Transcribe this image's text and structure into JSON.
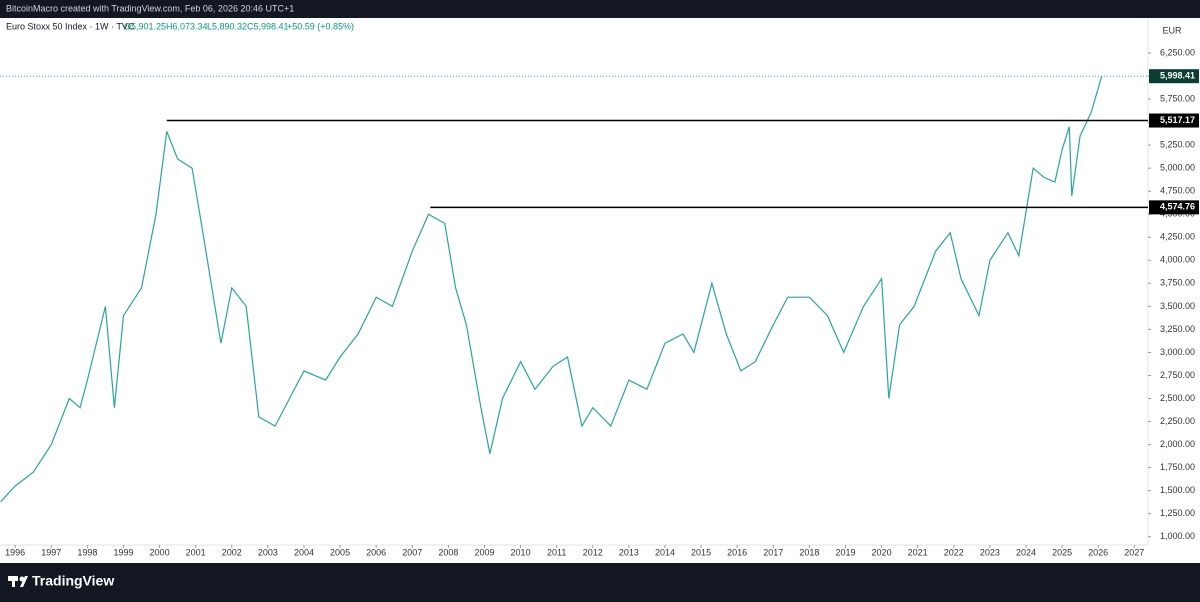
{
  "header": {
    "title": "BitcoinMacro created with TradingView.com, Feb 06, 2026 20:46 UTC+1"
  },
  "legend": {
    "symbol": "Euro Stoxx 50 Index · 1W · TVC",
    "open": "O5,901.25",
    "high": "H6,073.34",
    "low": "L5,890.32",
    "close": "C5,998.41",
    "change": "+50.59 (+0.85%)"
  },
  "footer": {
    "brand": "TradingView"
  },
  "chart_data": {
    "type": "line",
    "currency": "EUR",
    "color": "#26a69a",
    "x": [
      1995.6,
      1996.0,
      1996.5,
      1997.0,
      1997.5,
      1997.8,
      1998.0,
      1998.5,
      1998.75,
      1999.0,
      1999.5,
      1999.9,
      2000.2,
      2000.5,
      2000.9,
      2001.2,
      2001.7,
      2002.0,
      2002.4,
      2002.75,
      2003.2,
      2003.6,
      2004.0,
      2004.6,
      2005.0,
      2005.5,
      2006.0,
      2006.45,
      2007.0,
      2007.45,
      2007.9,
      2008.2,
      2008.5,
      2008.9,
      2009.15,
      2009.5,
      2010.0,
      2010.4,
      2010.9,
      2011.3,
      2011.7,
      2012.0,
      2012.5,
      2013.0,
      2013.5,
      2014.0,
      2014.5,
      2014.8,
      2015.3,
      2015.7,
      2016.1,
      2016.5,
      2017.0,
      2017.4,
      2018.0,
      2018.5,
      2018.95,
      2019.5,
      2020.0,
      2020.2,
      2020.5,
      2020.9,
      2021.5,
      2021.9,
      2022.2,
      2022.7,
      2023.0,
      2023.5,
      2023.8,
      2024.2,
      2024.5,
      2024.8,
      2025.0,
      2025.2,
      2025.27,
      2025.5,
      2025.8,
      2026.1
    ],
    "values": [
      1380,
      1550,
      1700,
      2000,
      2500,
      2400,
      2700,
      3500,
      2400,
      3400,
      3700,
      4500,
      5400,
      5100,
      5000,
      4300,
      3100,
      3700,
      3500,
      2300,
      2200,
      2500,
      2800,
      2700,
      2950,
      3200,
      3600,
      3500,
      4100,
      4500,
      4400,
      3700,
      3300,
      2400,
      1900,
      2500,
      2900,
      2600,
      2850,
      2950,
      2200,
      2400,
      2200,
      2700,
      2600,
      3100,
      3200,
      3000,
      3750,
      3200,
      2800,
      2900,
      3300,
      3600,
      3600,
      3400,
      3000,
      3500,
      3800,
      2500,
      3300,
      3500,
      4100,
      4300,
      3800,
      3400,
      4000,
      4300,
      4050,
      5000,
      4900,
      4850,
      5200,
      5450,
      4700,
      5350,
      5600,
      6000
    ],
    "xlim": [
      1995.58,
      2027.38
    ],
    "ylim": [
      910,
      6630
    ],
    "xticks": [
      1996,
      1997,
      1998,
      1999,
      2000,
      2001,
      2002,
      2003,
      2004,
      2005,
      2006,
      2007,
      2008,
      2009,
      2010,
      2011,
      2012,
      2013,
      2014,
      2015,
      2016,
      2017,
      2018,
      2019,
      2020,
      2021,
      2022,
      2023,
      2024,
      2025,
      2026,
      2027
    ],
    "yticks": [
      {
        "value": 1000,
        "label": "1,000.00"
      },
      {
        "value": 1250,
        "label": "1,250.00"
      },
      {
        "value": 1500,
        "label": "1,500.00"
      },
      {
        "value": 1750,
        "label": "1,750.00"
      },
      {
        "value": 2000,
        "label": "2,000.00"
      },
      {
        "value": 2250,
        "label": "2,250.00"
      },
      {
        "value": 2500,
        "label": "2,500.00"
      },
      {
        "value": 2750,
        "label": "2,750.00"
      },
      {
        "value": 3000,
        "label": "3,000.00"
      },
      {
        "value": 3250,
        "label": "3,250.00"
      },
      {
        "value": 3500,
        "label": "3,500.00"
      },
      {
        "value": 3750,
        "label": "3,750.00"
      },
      {
        "value": 4000,
        "label": "4,000.00"
      },
      {
        "value": 4250,
        "label": "4,250.00"
      },
      {
        "value": 4500,
        "label": "4,500.00"
      },
      {
        "value": 4750,
        "label": "4,750.00"
      },
      {
        "value": 5000,
        "label": "5,000.00"
      },
      {
        "value": 5250,
        "label": "5,250.00"
      },
      {
        "value": 5500,
        "label": "5,500.00"
      },
      {
        "value": 5750,
        "label": "5,750.00"
      },
      {
        "value": 6000,
        "label": "6,000.00"
      },
      {
        "value": 6250,
        "label": "6,250.00"
      }
    ],
    "hlines": [
      {
        "value": 5517.17,
        "label": "5,517.17",
        "start": 2000.2
      },
      {
        "value": 4574.76,
        "label": "4,574.76",
        "start": 2007.5
      }
    ],
    "last_price": {
      "value": 5998.41,
      "label": "5,998.41"
    }
  }
}
